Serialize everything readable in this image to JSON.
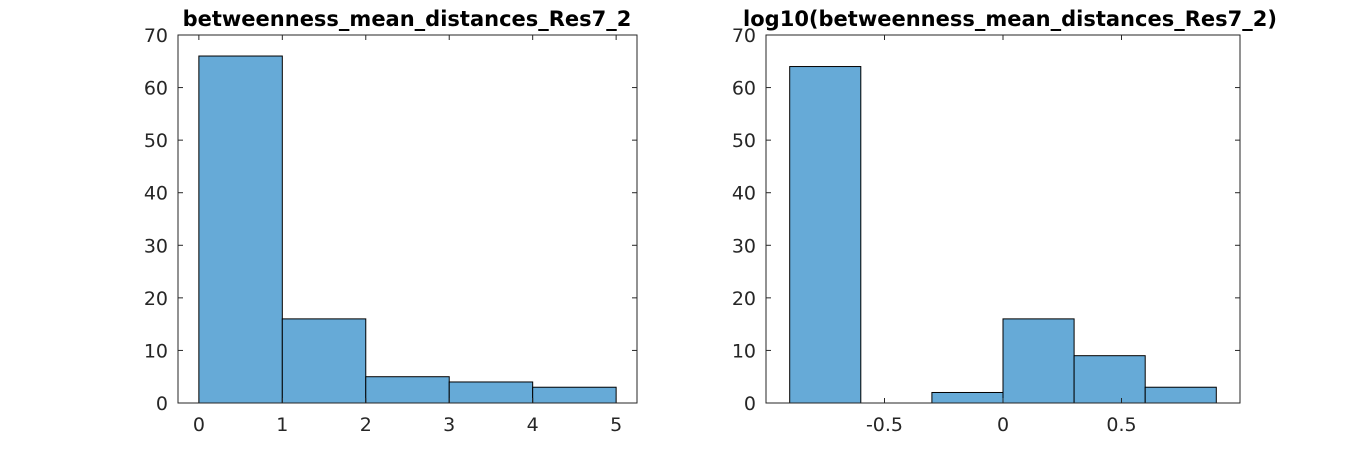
{
  "chart_data": [
    {
      "type": "bar",
      "title": "betweenness_mean_distances_Res7_2",
      "xlabel": "",
      "ylabel": "",
      "bin_edges": [
        0,
        1,
        2,
        3,
        4,
        5
      ],
      "values": [
        66,
        16,
        5,
        4,
        3
      ],
      "xlim": [
        -0.25,
        5.25
      ],
      "ylim": [
        0,
        70
      ],
      "xticks": [
        0,
        1,
        2,
        3,
        4,
        5
      ],
      "xtick_labels": [
        "0",
        "1",
        "2",
        "3",
        "4",
        "5"
      ],
      "yticks": [
        0,
        10,
        20,
        30,
        40,
        50,
        60,
        70
      ],
      "ytick_labels": [
        "0",
        "10",
        "20",
        "30",
        "40",
        "50",
        "60",
        "70"
      ],
      "bar_color": "#66aad7",
      "grid": false,
      "legend": false
    },
    {
      "type": "bar",
      "title": "log10(betweenness_mean_distances_Res7_2)",
      "xlabel": "",
      "ylabel": "",
      "bin_edges": [
        -0.9,
        -0.6,
        -0.3,
        0,
        0.3,
        0.6,
        0.9
      ],
      "values": [
        64,
        0,
        2,
        16,
        9,
        3
      ],
      "xlim": [
        -1.0,
        1.0
      ],
      "ylim": [
        0,
        70
      ],
      "xticks": [
        -0.5,
        0,
        0.5
      ],
      "xtick_labels": [
        "-0.5",
        "0",
        "0.5"
      ],
      "yticks": [
        0,
        10,
        20,
        30,
        40,
        50,
        60,
        70
      ],
      "ytick_labels": [
        "0",
        "10",
        "20",
        "30",
        "40",
        "50",
        "60",
        "70"
      ],
      "bar_color": "#66aad7",
      "grid": false,
      "legend": false
    }
  ]
}
